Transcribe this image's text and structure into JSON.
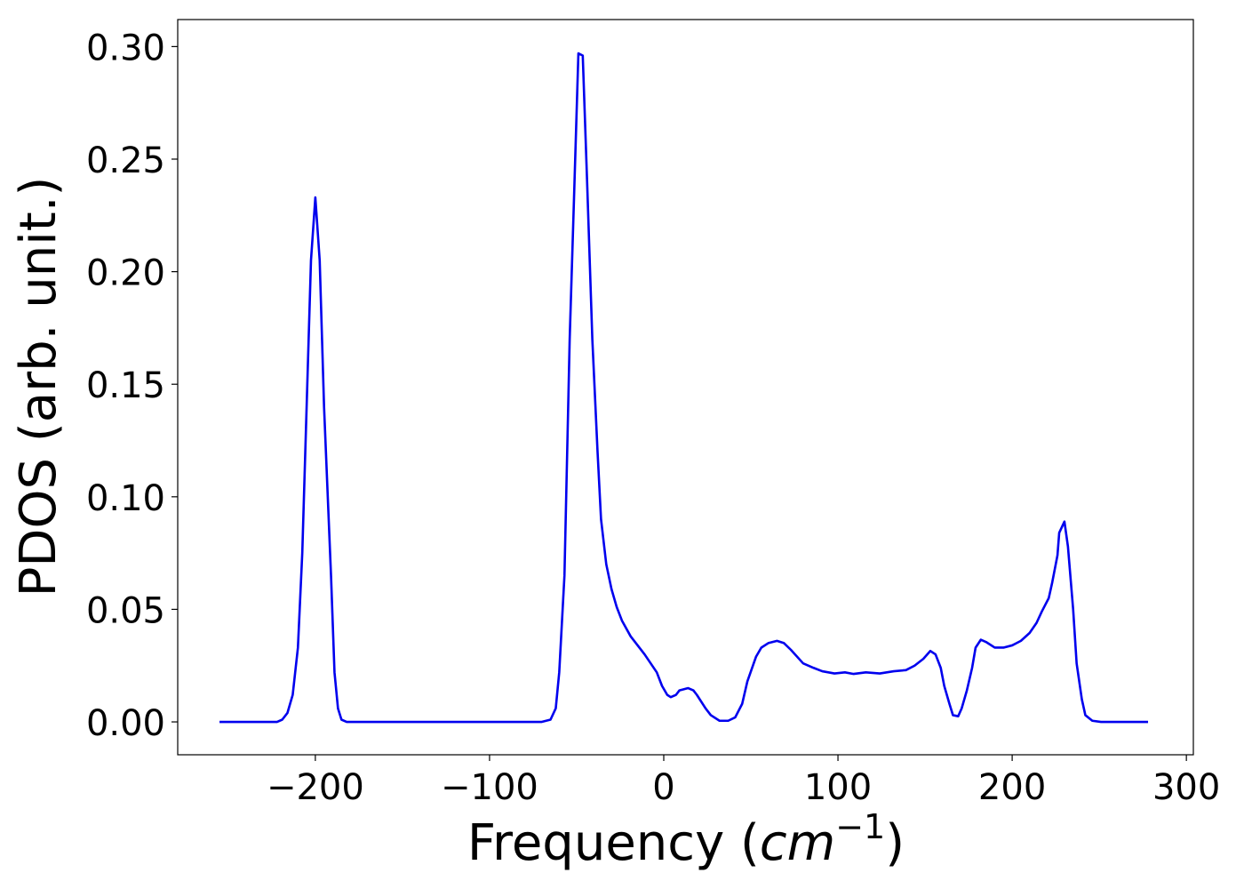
{
  "chart_data": {
    "type": "line",
    "xlabel": [
      "Frequency (",
      "cm",
      "−1",
      ")"
    ],
    "ylabel": "PDOS (arb. unit.)",
    "xlim": [
      -279,
      304
    ],
    "ylim": [
      -0.0146,
      0.312
    ],
    "xticks": [
      {
        "value": -200,
        "label": "−200"
      },
      {
        "value": -100,
        "label": "−100"
      },
      0,
      100,
      200,
      300
    ],
    "yticks": [
      {
        "value": 0,
        "label": "0.00"
      },
      {
        "value": 0.05,
        "label": "0.05"
      },
      {
        "value": 0.1,
        "label": "0.10"
      },
      {
        "value": 0.15,
        "label": "0.15"
      },
      {
        "value": 0.2,
        "label": "0.20"
      },
      {
        "value": 0.25,
        "label": "0.25"
      },
      {
        "value": 0.3,
        "label": "0.30"
      }
    ],
    "series": [
      {
        "color": "#0000ee",
        "x": [
          -255,
          -222,
          -219,
          -216,
          -213,
          -210,
          -207.5,
          -205,
          -202.5,
          -200,
          -197.5,
          -195,
          -191,
          -189,
          -187,
          -185,
          -182,
          -70,
          -65,
          -62,
          -60,
          -57,
          -54,
          -51.5,
          -49,
          -46.5,
          -44,
          -41,
          -38,
          -36,
          -33,
          -30,
          -27,
          -24,
          -19,
          -11,
          -4,
          -1,
          2,
          4,
          7,
          9,
          14,
          17,
          19,
          24,
          27,
          32,
          37,
          41,
          45,
          48,
          53,
          56,
          60,
          65,
          69,
          73,
          80,
          86,
          91,
          98,
          104,
          109,
          116,
          124,
          132,
          139,
          144,
          149,
          153,
          156,
          159,
          161,
          164,
          166,
          169,
          171,
          174,
          177,
          179,
          182,
          185,
          190,
          195,
          200,
          205,
          210,
          214,
          217,
          221,
          223,
          226,
          227,
          230,
          232,
          235,
          237,
          240,
          242,
          246,
          251,
          278
        ],
        "values": [
          0,
          0,
          0.001,
          0.004,
          0.012,
          0.033,
          0.075,
          0.14,
          0.205,
          0.233,
          0.205,
          0.14,
          0.065,
          0.022,
          0.006,
          0.001,
          0,
          0,
          0.001,
          0.006,
          0.022,
          0.065,
          0.17,
          0.233,
          0.297,
          0.296,
          0.24,
          0.17,
          0.12,
          0.09,
          0.07,
          0.059,
          0.051,
          0.045,
          0.038,
          0.03,
          0.022,
          0.016,
          0.012,
          0.011,
          0.012,
          0.014,
          0.015,
          0.014,
          0.012,
          0.006,
          0.003,
          0.0005,
          0.0005,
          0.002,
          0.008,
          0.018,
          0.029,
          0.033,
          0.035,
          0.036,
          0.035,
          0.032,
          0.026,
          0.024,
          0.0225,
          0.0215,
          0.022,
          0.0213,
          0.022,
          0.0215,
          0.0225,
          0.023,
          0.025,
          0.028,
          0.0315,
          0.03,
          0.024,
          0.016,
          0.008,
          0.003,
          0.0025,
          0.006,
          0.014,
          0.024,
          0.033,
          0.0365,
          0.0355,
          0.033,
          0.033,
          0.034,
          0.036,
          0.0395,
          0.044,
          0.049,
          0.055,
          0.062,
          0.074,
          0.084,
          0.089,
          0.078,
          0.05,
          0.026,
          0.01,
          0.003,
          0.0005,
          0,
          0
        ]
      }
    ]
  }
}
